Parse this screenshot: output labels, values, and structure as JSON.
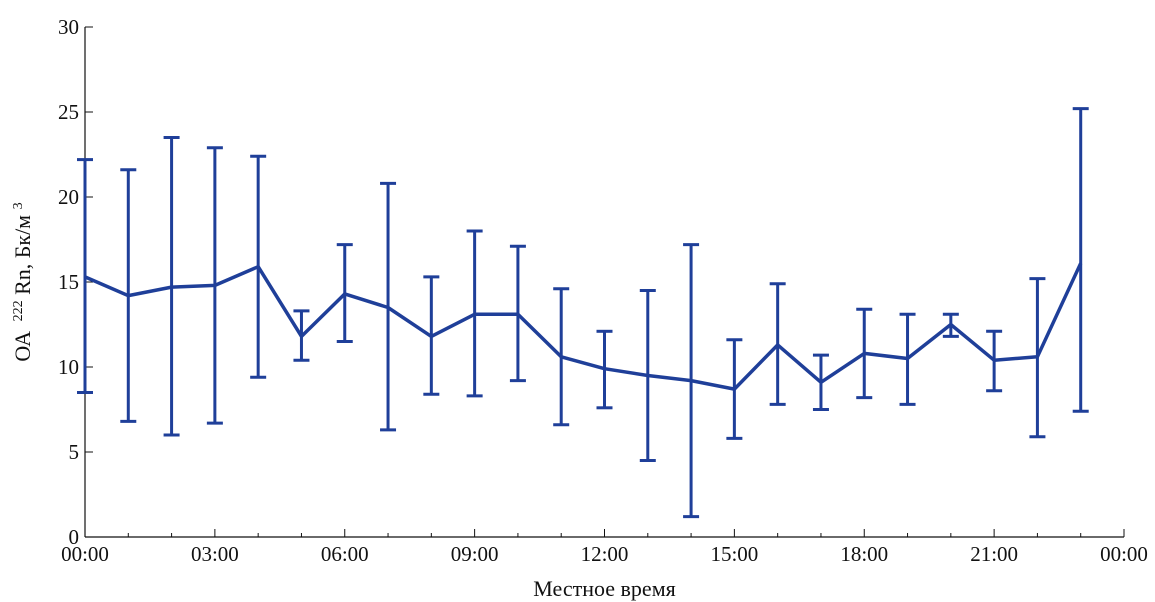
{
  "chart_data": {
    "type": "line",
    "title": "",
    "xlabel": "Местное время",
    "ylabel": {
      "prefix": "ОА",
      "superscript1": "222",
      "mid": "Rn, Бк/м",
      "superscript2": "3"
    },
    "x_ticks": [
      "00:00",
      "03:00",
      "06:00",
      "09:00",
      "12:00",
      "15:00",
      "18:00",
      "21:00",
      "00:00"
    ],
    "y_ticks": [
      "0",
      "5",
      "10",
      "15",
      "20",
      "25",
      "30"
    ],
    "ylim": [
      0,
      30
    ],
    "xlim_hours": [
      0,
      24
    ],
    "grid": false,
    "series": [
      {
        "color": "#1f3f99",
        "points": [
          {
            "hour": 0,
            "value": 15.3,
            "error_low": 8.5,
            "error_high": 22.2
          },
          {
            "hour": 1,
            "value": 14.2,
            "error_low": 6.8,
            "error_high": 21.6
          },
          {
            "hour": 2,
            "value": 14.7,
            "error_low": 6.0,
            "error_high": 23.5
          },
          {
            "hour": 3,
            "value": 14.8,
            "error_low": 6.7,
            "error_high": 22.9
          },
          {
            "hour": 4,
            "value": 15.9,
            "error_low": 9.4,
            "error_high": 22.4
          },
          {
            "hour": 5,
            "value": 11.8,
            "error_low": 10.4,
            "error_high": 13.3
          },
          {
            "hour": 6,
            "value": 14.3,
            "error_low": 11.5,
            "error_high": 17.2
          },
          {
            "hour": 7,
            "value": 13.5,
            "error_low": 6.3,
            "error_high": 20.8
          },
          {
            "hour": 8,
            "value": 11.8,
            "error_low": 8.4,
            "error_high": 15.3
          },
          {
            "hour": 9,
            "value": 13.1,
            "error_low": 8.3,
            "error_high": 18.0
          },
          {
            "hour": 10,
            "value": 13.1,
            "error_low": 9.2,
            "error_high": 17.1
          },
          {
            "hour": 11,
            "value": 10.6,
            "error_low": 6.6,
            "error_high": 14.6
          },
          {
            "hour": 12,
            "value": 9.9,
            "error_low": 7.6,
            "error_high": 12.1
          },
          {
            "hour": 13,
            "value": 9.5,
            "error_low": 4.5,
            "error_high": 14.5
          },
          {
            "hour": 14,
            "value": 9.2,
            "error_low": 1.2,
            "error_high": 17.2
          },
          {
            "hour": 15,
            "value": 8.7,
            "error_low": 5.8,
            "error_high": 11.6
          },
          {
            "hour": 16,
            "value": 11.3,
            "error_low": 7.8,
            "error_high": 14.9
          },
          {
            "hour": 17,
            "value": 9.1,
            "error_low": 7.5,
            "error_high": 10.7
          },
          {
            "hour": 18,
            "value": 10.8,
            "error_low": 8.2,
            "error_high": 13.4
          },
          {
            "hour": 19,
            "value": 10.5,
            "error_low": 7.8,
            "error_high": 13.1
          },
          {
            "hour": 20,
            "value": 12.5,
            "error_low": 11.8,
            "error_high": 13.1
          },
          {
            "hour": 21,
            "value": 10.4,
            "error_low": 8.6,
            "error_high": 12.1
          },
          {
            "hour": 22,
            "value": 10.6,
            "error_low": 5.9,
            "error_high": 15.2
          },
          {
            "hour": 23,
            "value": 16.1,
            "error_low": 7.4,
            "error_high": 25.2
          }
        ]
      }
    ]
  }
}
